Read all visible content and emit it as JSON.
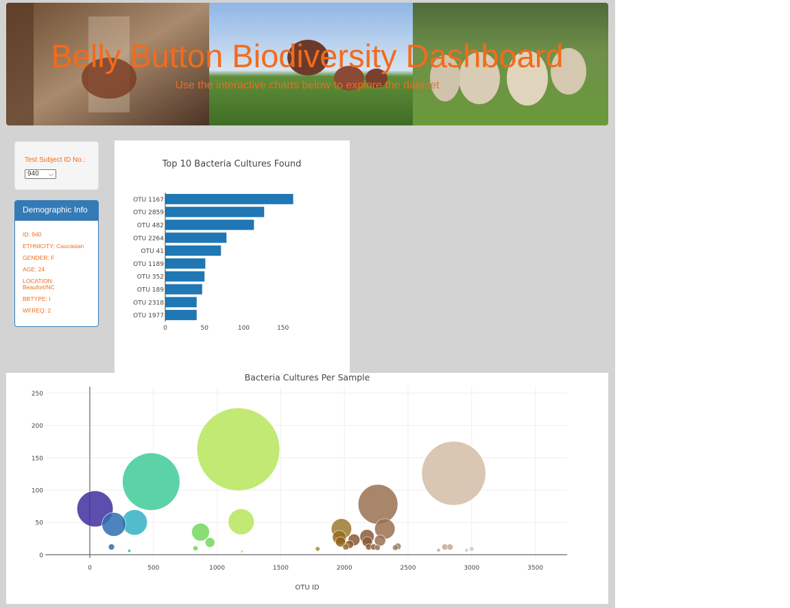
{
  "header": {
    "title": "Belly Button Biodiversity Dashboard",
    "subtitle": "Use the interactive charts below to explore the dataset"
  },
  "selector": {
    "label": "Test Subject ID No.:",
    "selected": "940"
  },
  "demographics": {
    "heading": "Demographic Info",
    "lines": [
      "ID: 940",
      "ETHNICITY: Caucasian",
      "GENDER: F",
      "AGE: 24",
      "LOCATION: Beaufort/NC",
      "BBTYPE: I",
      "WFREQ: 2"
    ]
  },
  "colors": {
    "accent": "#f26b1d",
    "panel_blue": "#337ab7",
    "bar_blue": "#1f77b4"
  },
  "chart_data": [
    {
      "type": "bar",
      "orientation": "horizontal",
      "title": "Top 10 Bacteria Cultures Found",
      "categories": [
        "OTU 1167",
        "OTU 2859",
        "OTU 482",
        "OTU 2264",
        "OTU 41",
        "OTU 1189",
        "OTU 352",
        "OTU 189",
        "OTU 2318",
        "OTU 1977"
      ],
      "values": [
        163,
        126,
        113,
        78,
        71,
        51,
        50,
        47,
        40,
        40
      ],
      "xlim": [
        0,
        173
      ],
      "xticks": [
        0,
        50,
        100,
        150
      ]
    },
    {
      "type": "scatter",
      "title": "Bacteria Cultures Per Sample",
      "xlabel": "OTU ID",
      "ylabel": "",
      "xlim": [
        -350,
        3750
      ],
      "ylim": [
        -5,
        260
      ],
      "xticks": [
        0,
        500,
        1000,
        1500,
        2000,
        2500,
        3000,
        3500
      ],
      "yticks": [
        0,
        50,
        100,
        150,
        200,
        250
      ],
      "grid": true,
      "points": [
        {
          "x": 41,
          "y": 71,
          "color": "#3f2f9e"
        },
        {
          "x": 189,
          "y": 47,
          "color": "#2f6eb0"
        },
        {
          "x": 352,
          "y": 50,
          "color": "#34b0c2"
        },
        {
          "x": 482,
          "y": 113,
          "color": "#3ecb98"
        },
        {
          "x": 170,
          "y": 12,
          "color": "#2f6eb0"
        },
        {
          "x": 310,
          "y": 6,
          "color": "#34b0c2"
        },
        {
          "x": 870,
          "y": 35,
          "color": "#74d85a"
        },
        {
          "x": 944,
          "y": 19,
          "color": "#74d85a"
        },
        {
          "x": 830,
          "y": 10,
          "color": "#74d85a"
        },
        {
          "x": 1167,
          "y": 163,
          "color": "#b7e55a"
        },
        {
          "x": 1189,
          "y": 51,
          "color": "#b7e55a"
        },
        {
          "x": 1195,
          "y": 5,
          "color": "#b7e55a"
        },
        {
          "x": 1790,
          "y": 9,
          "color": "#a88a3c"
        },
        {
          "x": 1977,
          "y": 40,
          "color": "#9b7a2e"
        },
        {
          "x": 1960,
          "y": 27,
          "color": "#9b6a1e"
        },
        {
          "x": 1970,
          "y": 20,
          "color": "#8e6418"
        },
        {
          "x": 2011,
          "y": 12,
          "color": "#9b6a1e"
        },
        {
          "x": 2040,
          "y": 16,
          "color": "#8e5a2a"
        },
        {
          "x": 2076,
          "y": 23,
          "color": "#8a5a34"
        },
        {
          "x": 2178,
          "y": 28,
          "color": "#8a5a3a"
        },
        {
          "x": 2180,
          "y": 20,
          "color": "#8a5a3a"
        },
        {
          "x": 2191,
          "y": 12,
          "color": "#8a5a3a"
        },
        {
          "x": 2230,
          "y": 12,
          "color": "#8a5a3a"
        },
        {
          "x": 2264,
          "y": 78,
          "color": "#9a7050"
        },
        {
          "x": 2318,
          "y": 40,
          "color": "#9a7050"
        },
        {
          "x": 2280,
          "y": 22,
          "color": "#9a7050"
        },
        {
          "x": 2260,
          "y": 11,
          "color": "#9a7050"
        },
        {
          "x": 2400,
          "y": 11,
          "color": "#a07e62"
        },
        {
          "x": 2420,
          "y": 13,
          "color": "#a07e62"
        },
        {
          "x": 2740,
          "y": 7,
          "color": "#c4a890"
        },
        {
          "x": 2790,
          "y": 12,
          "color": "#c4a890"
        },
        {
          "x": 2830,
          "y": 12,
          "color": "#c4a890"
        },
        {
          "x": 2859,
          "y": 126,
          "color": "#d2bca6"
        },
        {
          "x": 2960,
          "y": 7,
          "color": "#d6c6b6"
        },
        {
          "x": 3000,
          "y": 9,
          "color": "#d6c6b6"
        }
      ]
    }
  ]
}
